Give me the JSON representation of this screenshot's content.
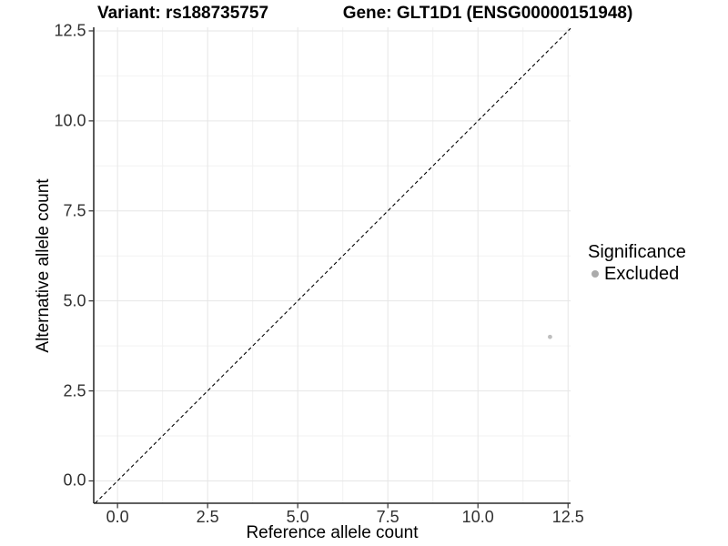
{
  "title": {
    "variant": "Variant: rs188735757",
    "gene": "Gene: GLT1D1 (ENSG00000151948)"
  },
  "axes": {
    "x_label": "Reference allele count",
    "y_label": "Alternative allele count",
    "x_tick_labels": [
      "0.0",
      "2.5",
      "5.0",
      "7.5",
      "10.0",
      "12.5"
    ],
    "y_tick_labels": [
      "0.0",
      "2.5",
      "5.0",
      "7.5",
      "10.0",
      "12.5"
    ]
  },
  "legend": {
    "title": "Significance",
    "items": [
      {
        "label": "Excluded",
        "color": "#ababab"
      }
    ]
  },
  "colors": {
    "point": "#bebebe",
    "grid_major": "#e6e6e6",
    "grid_minor": "#f2f2f2",
    "axis_line": "#000000",
    "tick_mark": "#333333",
    "tick_text": "#303030",
    "diagonal": "#000000"
  },
  "chart_data": {
    "type": "scatter",
    "title": "Variant: rs188735757   Gene: GLT1D1 (ENSG00000151948)",
    "xlabel": "Reference allele count",
    "ylabel": "Alternative allele count",
    "xlim": [
      -0.66,
      12.57
    ],
    "ylim": [
      -0.62,
      12.6
    ],
    "x_ticks": [
      0,
      2.5,
      5,
      7.5,
      10,
      12.5
    ],
    "y_ticks": [
      0,
      2.5,
      5,
      7.5,
      10,
      12.5
    ],
    "x_minor_ticks": [
      1.25,
      3.75,
      6.25,
      8.75,
      11.25
    ],
    "y_minor_ticks": [
      1.25,
      3.75,
      6.25,
      8.75,
      11.25
    ],
    "grid": true,
    "legend_position": "right",
    "reference_line": {
      "type": "y=x",
      "style": "dashed",
      "color": "#000000"
    },
    "series": [
      {
        "name": "Excluded",
        "color": "#bebebe",
        "points": [
          {
            "x": 12,
            "y": 4
          }
        ]
      }
    ]
  }
}
